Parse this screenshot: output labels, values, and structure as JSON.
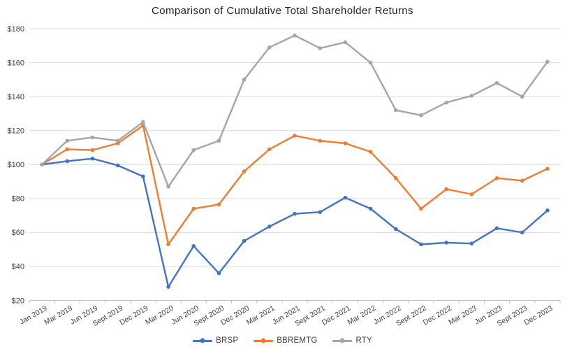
{
  "title": "Comparison of Cumulative Total Shareholder Returns",
  "colors": {
    "grid": "#d9d9d9",
    "axis_line": "#bfbfbf",
    "tick_text": "#404040",
    "title_text": "#212121"
  },
  "legend": {
    "entries": [
      "BRSP",
      "BBREMTG",
      "RTY"
    ]
  },
  "chart_data": {
    "type": "line",
    "title": "Comparison of Cumulative Total Shareholder Returns",
    "xlabel": "",
    "ylabel": "",
    "ylim": [
      20,
      180
    ],
    "ytick_step": 20,
    "ytick_prefix": "$",
    "grid": true,
    "legend_position": "bottom",
    "x_label_rotation_deg": -30,
    "categories": [
      "Jan 2019",
      "Mar 2019",
      "Jun 2019",
      "Sept 2019",
      "Dec 2019",
      "Mar 2020",
      "Jun 2020",
      "Sept 2020",
      "Dec 2020",
      "Mar 2021",
      "Jun 2021",
      "Sept 2021",
      "Dec 2021",
      "Mar 2022",
      "Jun 2022",
      "Sept 2022",
      "Dec 2022",
      "Mar 2023",
      "Jun 2023",
      "Sept 2023",
      "Dec 2023"
    ],
    "series": [
      {
        "name": "BRSP",
        "color": "#4472c4",
        "values": [
          100,
          102,
          103.5,
          99.5,
          93,
          28,
          52,
          36,
          55,
          63.5,
          71,
          72,
          80.5,
          74,
          62,
          53,
          54,
          53.5,
          62.5,
          60,
          73
        ]
      },
      {
        "name": "BBREMTG",
        "color": "#ed7d31",
        "values": [
          100,
          109,
          108.5,
          112.5,
          123,
          53,
          74,
          76.5,
          96,
          109,
          117,
          114,
          112.5,
          107.5,
          92,
          74,
          85.5,
          82.5,
          92,
          90.5,
          97.5
        ]
      },
      {
        "name": "RTY",
        "color": "#a5a5a5",
        "values": [
          100,
          114,
          116,
          114,
          125,
          87,
          108.5,
          114,
          150,
          169,
          176,
          168.5,
          172,
          160,
          132,
          129,
          136.5,
          140.5,
          148,
          140,
          160.5
        ]
      }
    ]
  }
}
